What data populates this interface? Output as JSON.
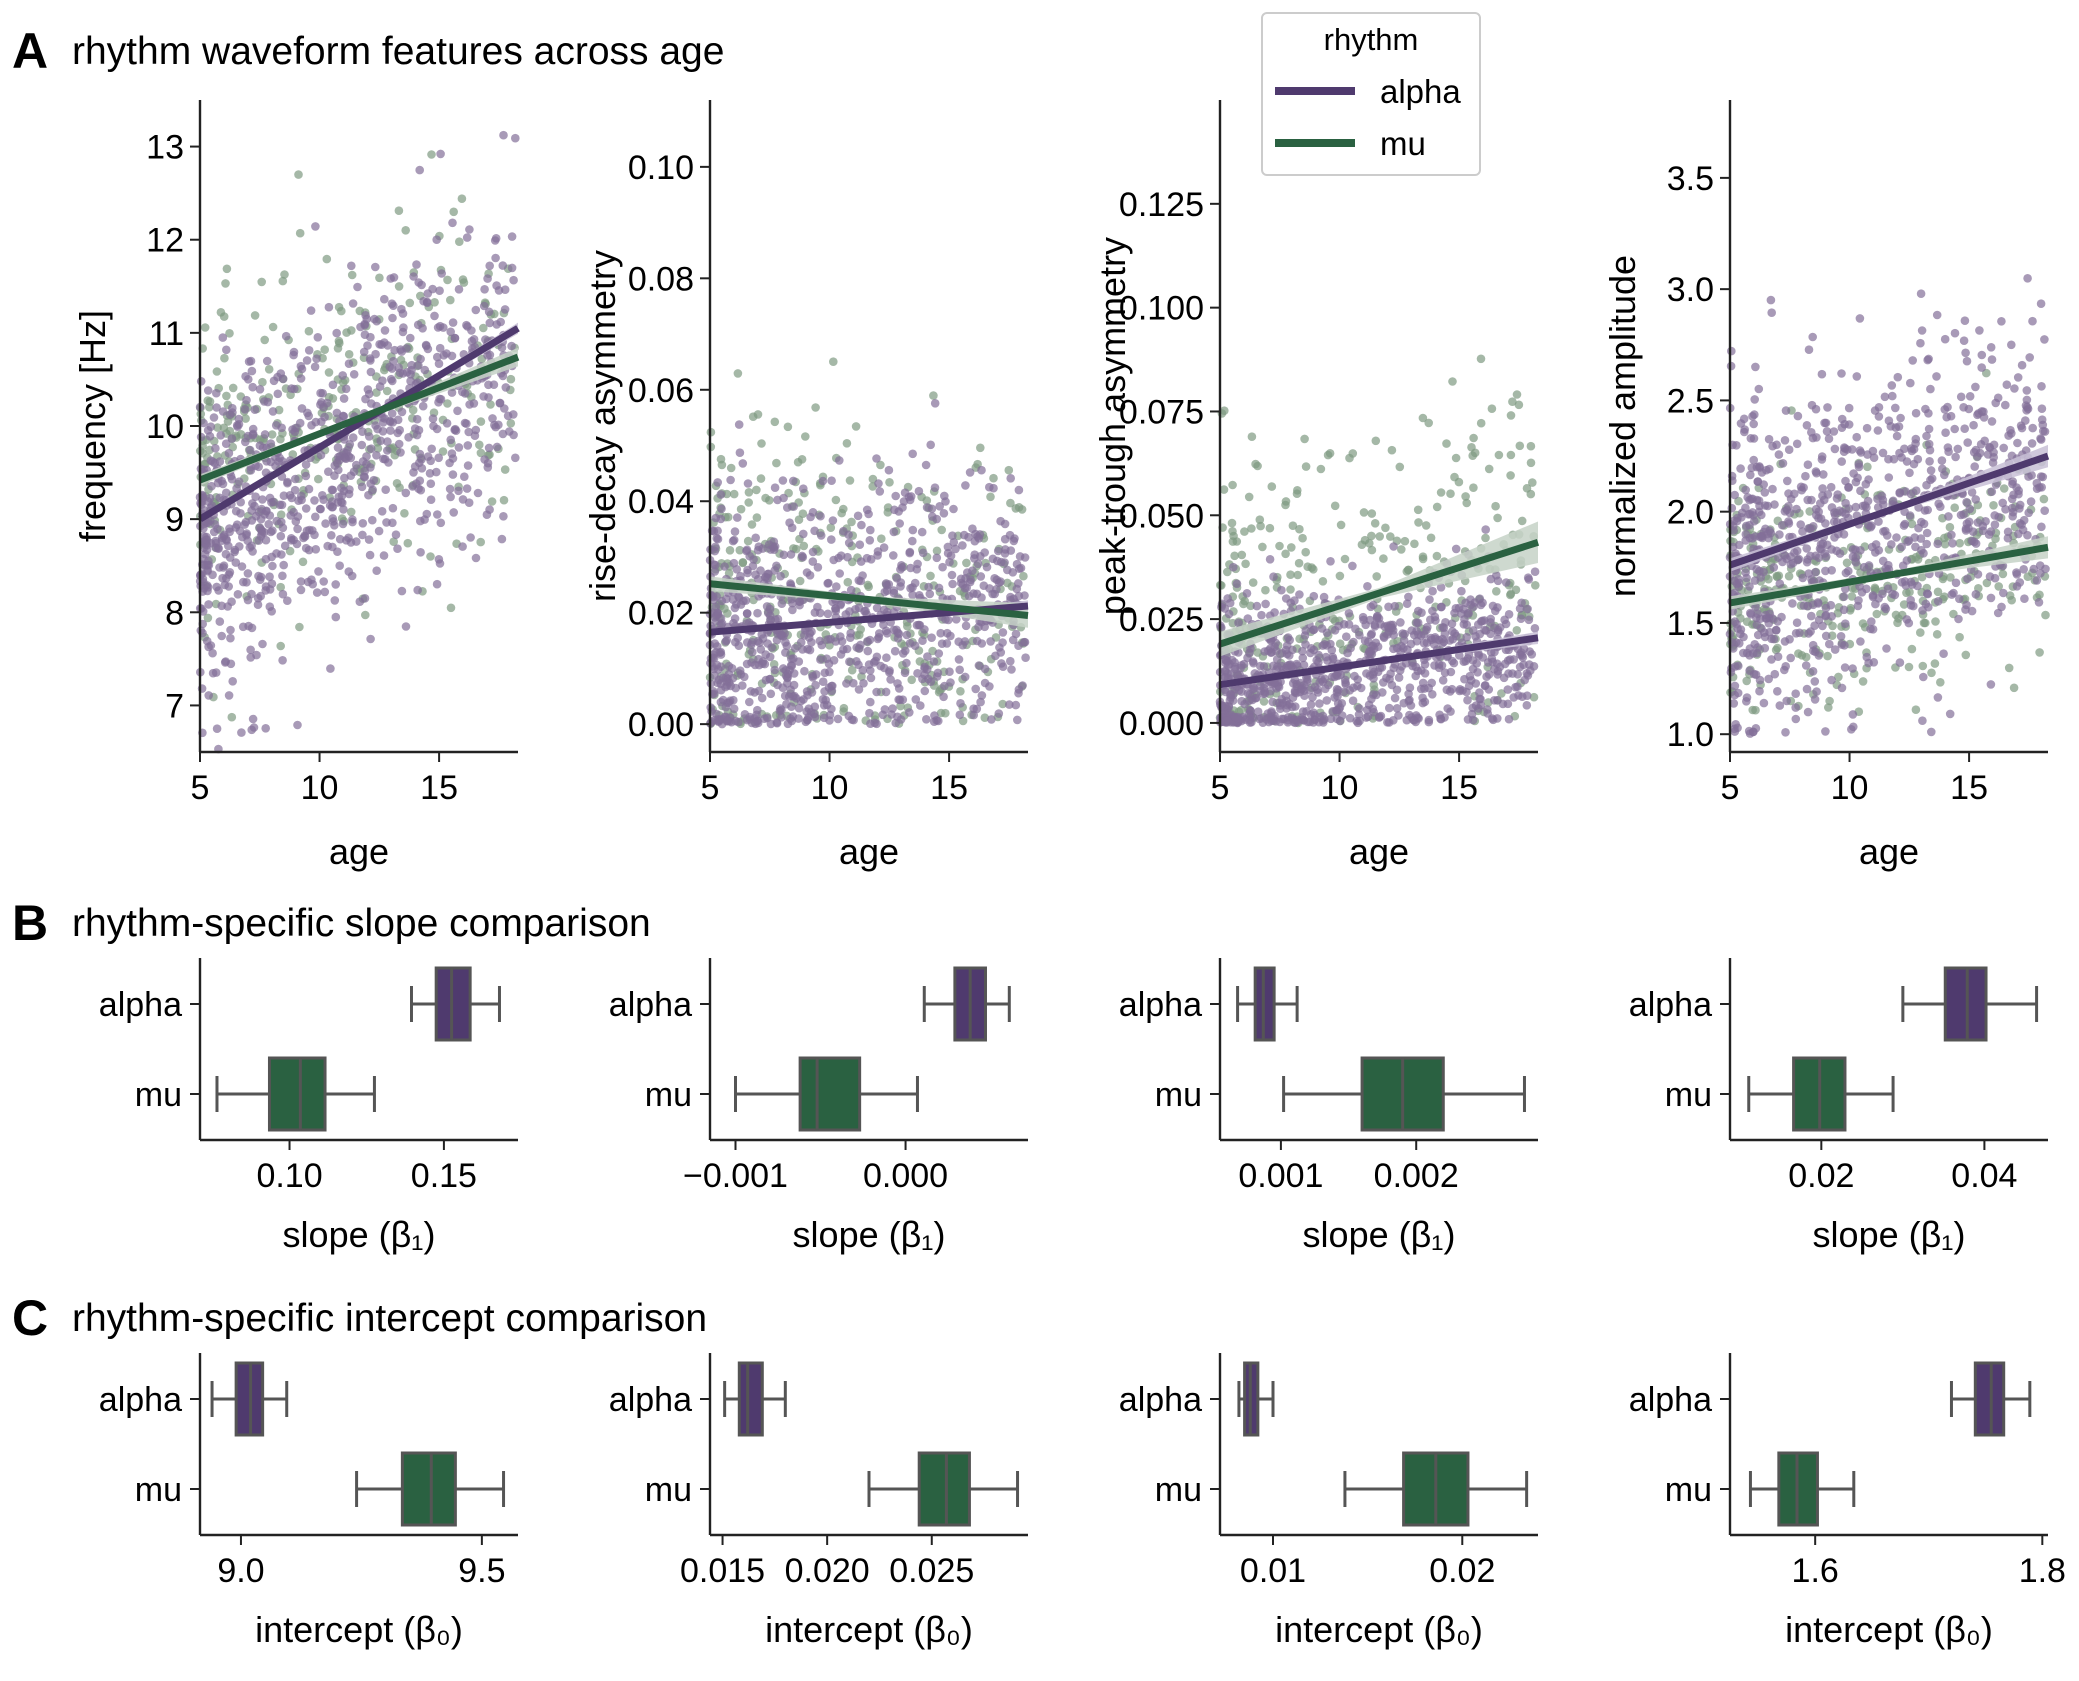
{
  "colors": {
    "alpha": "#4f3a6e",
    "mu": "#2a6141",
    "alpha_pt": "#836f99",
    "mu_pt": "#7f9a82",
    "whisker": "#555555",
    "axis": "#222222",
    "ci_alpha": "#c8c0d6",
    "ci_mu": "#c6d2c7"
  },
  "panels": {
    "a": {
      "letter": "A",
      "title": "rhythm waveform features across age"
    },
    "b": {
      "letter": "B",
      "title": "rhythm-specific slope comparison"
    },
    "c": {
      "letter": "C",
      "title": "rhythm-specific intercept comparison"
    }
  },
  "legend": {
    "title": "rhythm",
    "items": [
      {
        "key": "alpha",
        "label": "alpha"
      },
      {
        "key": "mu",
        "label": "mu"
      }
    ]
  },
  "chart_data": [
    {
      "type": "scatter",
      "panel": "A",
      "xlabel": "age",
      "ylabel": "frequency [Hz]",
      "xlim": [
        5,
        18.3
      ],
      "ylim": [
        6.5,
        13.5
      ],
      "xticks": [
        {
          "v": 5,
          "label": "5"
        },
        {
          "v": 10,
          "label": "10"
        },
        {
          "v": 15,
          "label": "15"
        }
      ],
      "yticks": [
        {
          "v": 7,
          "label": "7"
        },
        {
          "v": 8,
          "label": "8"
        },
        {
          "v": 9,
          "label": "9"
        },
        {
          "v": 10,
          "label": "10"
        },
        {
          "v": 11,
          "label": "11"
        },
        {
          "v": 12,
          "label": "12"
        },
        {
          "v": 13,
          "label": "13"
        }
      ],
      "fits": [
        {
          "name": "alpha",
          "x": [
            5,
            18.3
          ],
          "y": [
            9.0,
            11.05
          ],
          "ci": 0.06
        },
        {
          "name": "mu",
          "x": [
            5,
            18.3
          ],
          "y": [
            9.42,
            10.74
          ],
          "ci": 0.1
        }
      ],
      "scatter": {
        "alpha": {
          "n": 850,
          "center": 9.5,
          "slope": 0.154,
          "sd": 0.85
        },
        "mu": {
          "n": 330,
          "center": 10.0,
          "slope": 0.1,
          "sd": 0.85
        }
      }
    },
    {
      "type": "scatter",
      "panel": "A",
      "xlabel": "age",
      "ylabel": "rise-decay asymmetry",
      "xlim": [
        5,
        18.3
      ],
      "ylim": [
        -0.005,
        0.112
      ],
      "xticks": [
        {
          "v": 5,
          "label": "5"
        },
        {
          "v": 10,
          "label": "10"
        },
        {
          "v": 15,
          "label": "15"
        }
      ],
      "yticks": [
        {
          "v": 0.0,
          "label": "0.00"
        },
        {
          "v": 0.02,
          "label": "0.02"
        },
        {
          "v": 0.04,
          "label": "0.04"
        },
        {
          "v": 0.06,
          "label": "0.06"
        },
        {
          "v": 0.08,
          "label": "0.08"
        },
        {
          "v": 0.1,
          "label": "0.10"
        }
      ],
      "fits": [
        {
          "name": "alpha",
          "x": [
            5,
            18.3
          ],
          "y": [
            0.0165,
            0.0212
          ],
          "ci": 0.001
        },
        {
          "name": "mu",
          "x": [
            5,
            18.3
          ],
          "y": [
            0.0252,
            0.0195
          ],
          "ci": 0.0022
        }
      ],
      "scatter": {
        "alpha": {
          "n": 850,
          "center": 0.018,
          "slope": 0.0004,
          "sd": 0.012,
          "min": 0
        },
        "mu": {
          "n": 330,
          "center": 0.023,
          "slope": -0.0004,
          "sd": 0.016,
          "min": 0
        }
      }
    },
    {
      "type": "scatter",
      "panel": "A",
      "xlabel": "age",
      "ylabel": "peak-trough asymmetry",
      "xlim": [
        5,
        18.3
      ],
      "ylim": [
        -0.007,
        0.15
      ],
      "xticks": [
        {
          "v": 5,
          "label": "5"
        },
        {
          "v": 10,
          "label": "10"
        },
        {
          "v": 15,
          "label": "15"
        }
      ],
      "yticks": [
        {
          "v": 0.0,
          "label": "0.000"
        },
        {
          "v": 0.025,
          "label": "0.025"
        },
        {
          "v": 0.05,
          "label": "0.050"
        },
        {
          "v": 0.075,
          "label": "0.075"
        },
        {
          "v": 0.1,
          "label": "0.100"
        },
        {
          "v": 0.125,
          "label": "0.125"
        }
      ],
      "fits": [
        {
          "name": "alpha",
          "x": [
            5,
            18.3
          ],
          "y": [
            0.0092,
            0.0205
          ],
          "ci": 0.0015
        },
        {
          "name": "mu",
          "x": [
            5,
            18.3
          ],
          "y": [
            0.019,
            0.0435
          ],
          "ci": 0.005
        }
      ],
      "scatter": {
        "alpha": {
          "n": 850,
          "center": 0.013,
          "slope": 0.0009,
          "sd": 0.01,
          "min": 0
        },
        "mu": {
          "n": 330,
          "center": 0.029,
          "slope": 0.0019,
          "sd": 0.022,
          "min": 0
        }
      }
    },
    {
      "type": "scatter",
      "panel": "A",
      "xlabel": "age",
      "ylabel": "normalized amplitude",
      "xlim": [
        5,
        18.3
      ],
      "ylim": [
        0.92,
        3.85
      ],
      "xticks": [
        {
          "v": 5,
          "label": "5"
        },
        {
          "v": 10,
          "label": "10"
        },
        {
          "v": 15,
          "label": "15"
        }
      ],
      "yticks": [
        {
          "v": 1.0,
          "label": "1.0"
        },
        {
          "v": 1.5,
          "label": "1.5"
        },
        {
          "v": 2.0,
          "label": "2.0"
        },
        {
          "v": 2.5,
          "label": "2.5"
        },
        {
          "v": 3.0,
          "label": "3.0"
        },
        {
          "v": 3.5,
          "label": "3.5"
        }
      ],
      "fits": [
        {
          "name": "alpha",
          "x": [
            5,
            18.3
          ],
          "y": [
            1.76,
            2.25
          ],
          "ci": 0.05
        },
        {
          "name": "mu",
          "x": [
            5,
            18.3
          ],
          "y": [
            1.59,
            1.84
          ],
          "ci": 0.05
        }
      ],
      "scatter": {
        "alpha": {
          "n": 850,
          "center": 1.9,
          "slope": 0.037,
          "sd": 0.38,
          "min": 1.0
        },
        "mu": {
          "n": 330,
          "center": 1.67,
          "slope": 0.019,
          "sd": 0.25,
          "min": 1.1
        }
      }
    },
    {
      "type": "box",
      "panel": "B",
      "xlabel": "slope (β₁)",
      "xlim": [
        0.071,
        0.174
      ],
      "xticks": [
        {
          "v": 0.1,
          "label": "0.10"
        },
        {
          "v": 0.15,
          "label": "0.15"
        }
      ],
      "categories": [
        "alpha",
        "mu"
      ],
      "boxes": [
        {
          "name": "alpha",
          "whislo": 0.1395,
          "q1": 0.1475,
          "med": 0.1525,
          "q3": 0.1585,
          "whishi": 0.168
        },
        {
          "name": "mu",
          "whislo": 0.0765,
          "q1": 0.0935,
          "med": 0.1035,
          "q3": 0.1115,
          "whishi": 0.1275
        }
      ]
    },
    {
      "type": "box",
      "panel": "B",
      "xlabel": "slope (β₁)",
      "xlim": [
        -0.00115,
        0.00072
      ],
      "xticks": [
        {
          "v": -0.001,
          "label": "−0.001"
        },
        {
          "v": 0.0,
          "label": "0.000"
        }
      ],
      "categories": [
        "alpha",
        "mu"
      ],
      "boxes": [
        {
          "name": "alpha",
          "whislo": 0.00011,
          "q1": 0.00029,
          "med": 0.00038,
          "q3": 0.00047,
          "whishi": 0.00061
        },
        {
          "name": "mu",
          "whislo": -0.001,
          "q1": -0.00062,
          "med": -0.00052,
          "q3": -0.00027,
          "whishi": 7e-05
        }
      ]
    },
    {
      "type": "box",
      "panel": "B",
      "xlabel": "slope (β₁)",
      "xlim": [
        0.00055,
        0.0029
      ],
      "xticks": [
        {
          "v": 0.001,
          "label": "0.001"
        },
        {
          "v": 0.002,
          "label": "0.002"
        }
      ],
      "categories": [
        "alpha",
        "mu"
      ],
      "boxes": [
        {
          "name": "alpha",
          "whislo": 0.00068,
          "q1": 0.00081,
          "med": 0.00087,
          "q3": 0.00095,
          "whishi": 0.00112
        },
        {
          "name": "mu",
          "whislo": 0.00102,
          "q1": 0.0016,
          "med": 0.0019,
          "q3": 0.0022,
          "whishi": 0.0028
        }
      ]
    },
    {
      "type": "box",
      "panel": "B",
      "xlabel": "slope (β₁)",
      "xlim": [
        0.0088,
        0.0478
      ],
      "xticks": [
        {
          "v": 0.02,
          "label": "0.02"
        },
        {
          "v": 0.04,
          "label": "0.04"
        }
      ],
      "categories": [
        "alpha",
        "mu"
      ],
      "boxes": [
        {
          "name": "alpha",
          "whislo": 0.03,
          "q1": 0.0352,
          "med": 0.0379,
          "q3": 0.0402,
          "whishi": 0.0464
        },
        {
          "name": "mu",
          "whislo": 0.0111,
          "q1": 0.0166,
          "med": 0.0198,
          "q3": 0.0229,
          "whishi": 0.0288
        }
      ]
    },
    {
      "type": "box",
      "panel": "C",
      "xlabel": "intercept (β₀)",
      "xlim": [
        8.915,
        9.575
      ],
      "xticks": [
        {
          "v": 9.0,
          "label": "9.0"
        },
        {
          "v": 9.5,
          "label": "9.5"
        }
      ],
      "categories": [
        "alpha",
        "mu"
      ],
      "boxes": [
        {
          "name": "alpha",
          "whislo": 8.94,
          "q1": 8.99,
          "med": 9.02,
          "q3": 9.045,
          "whishi": 9.095
        },
        {
          "name": "mu",
          "whislo": 9.24,
          "q1": 9.335,
          "med": 9.395,
          "q3": 9.445,
          "whishi": 9.545
        }
      ]
    },
    {
      "type": "box",
      "panel": "C",
      "xlabel": "intercept (β₀)",
      "xlim": [
        0.0144,
        0.0296
      ],
      "xticks": [
        {
          "v": 0.015,
          "label": "0.015"
        },
        {
          "v": 0.02,
          "label": "0.020"
        },
        {
          "v": 0.025,
          "label": "0.025"
        }
      ],
      "categories": [
        "alpha",
        "mu"
      ],
      "boxes": [
        {
          "name": "alpha",
          "whislo": 0.0151,
          "q1": 0.0158,
          "med": 0.0162,
          "q3": 0.0169,
          "whishi": 0.018
        },
        {
          "name": "mu",
          "whislo": 0.022,
          "q1": 0.0244,
          "med": 0.0257,
          "q3": 0.0268,
          "whishi": 0.0291
        }
      ]
    },
    {
      "type": "box",
      "panel": "C",
      "xlabel": "intercept (β₀)",
      "xlim": [
        0.0072,
        0.024
      ],
      "xticks": [
        {
          "v": 0.01,
          "label": "0.01"
        },
        {
          "v": 0.02,
          "label": "0.02"
        }
      ],
      "categories": [
        "alpha",
        "mu"
      ],
      "boxes": [
        {
          "name": "alpha",
          "whislo": 0.0082,
          "q1": 0.0085,
          "med": 0.0088,
          "q3": 0.0092,
          "whishi": 0.01
        },
        {
          "name": "mu",
          "whislo": 0.0138,
          "q1": 0.0169,
          "med": 0.0186,
          "q3": 0.0203,
          "whishi": 0.0234
        }
      ]
    },
    {
      "type": "box",
      "panel": "C",
      "xlabel": "intercept (β₀)",
      "xlim": [
        1.525,
        1.805
      ],
      "xticks": [
        {
          "v": 1.6,
          "label": "1.6"
        },
        {
          "v": 1.8,
          "label": "1.8"
        }
      ],
      "categories": [
        "alpha",
        "mu"
      ],
      "boxes": [
        {
          "name": "alpha",
          "whislo": 1.72,
          "q1": 1.741,
          "med": 1.755,
          "q3": 1.766,
          "whishi": 1.789
        },
        {
          "name": "mu",
          "whislo": 1.543,
          "q1": 1.568,
          "med": 1.584,
          "q3": 1.602,
          "whishi": 1.634
        }
      ]
    }
  ]
}
